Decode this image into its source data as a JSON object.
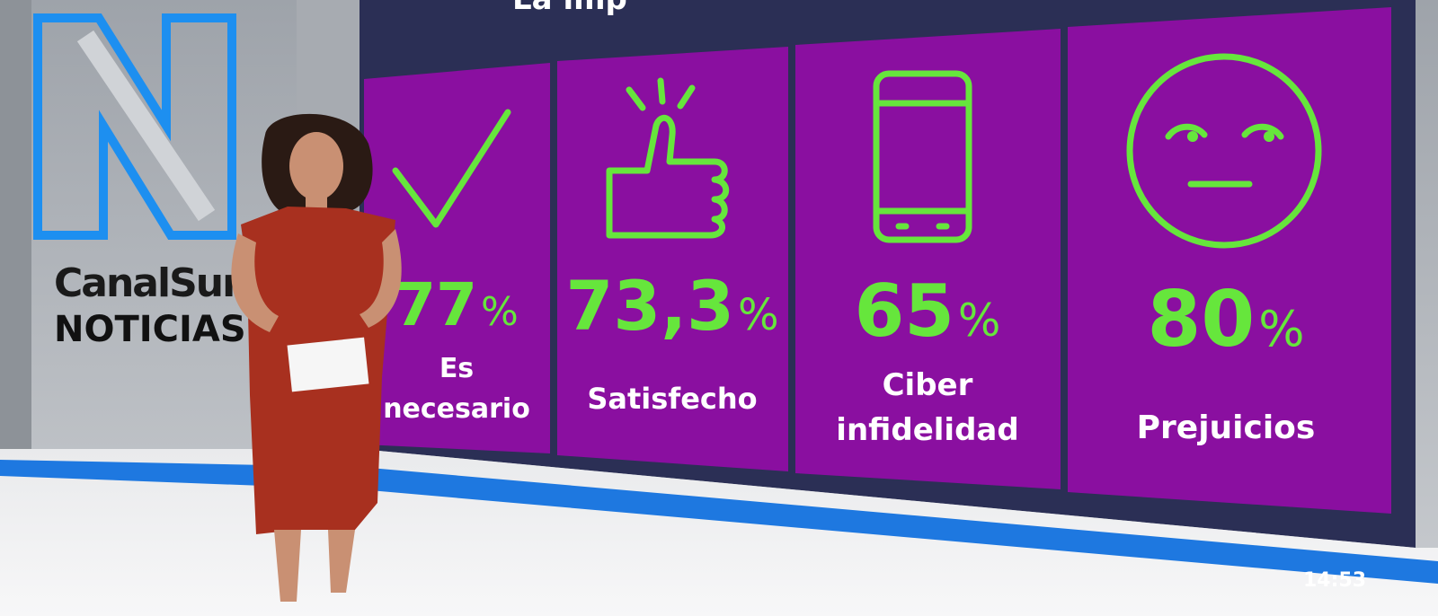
{
  "header": {
    "title": "La imp"
  },
  "logo": {
    "brand": "CanalSur",
    "section": "NOTICIAS"
  },
  "cards": [
    {
      "value": "77",
      "unit": "%",
      "label_lines": [
        "Es",
        "necesario"
      ]
    },
    {
      "value": "73,3",
      "unit": "%",
      "label_lines": [
        "Satisfecho"
      ]
    },
    {
      "value": "65",
      "unit": "%",
      "label_lines": [
        "Ciber",
        "infidelidad"
      ]
    },
    {
      "value": "80",
      "unit": "%",
      "label_lines": [
        "Prejuicios"
      ]
    }
  ],
  "clock": {
    "time": "14:53"
  }
}
